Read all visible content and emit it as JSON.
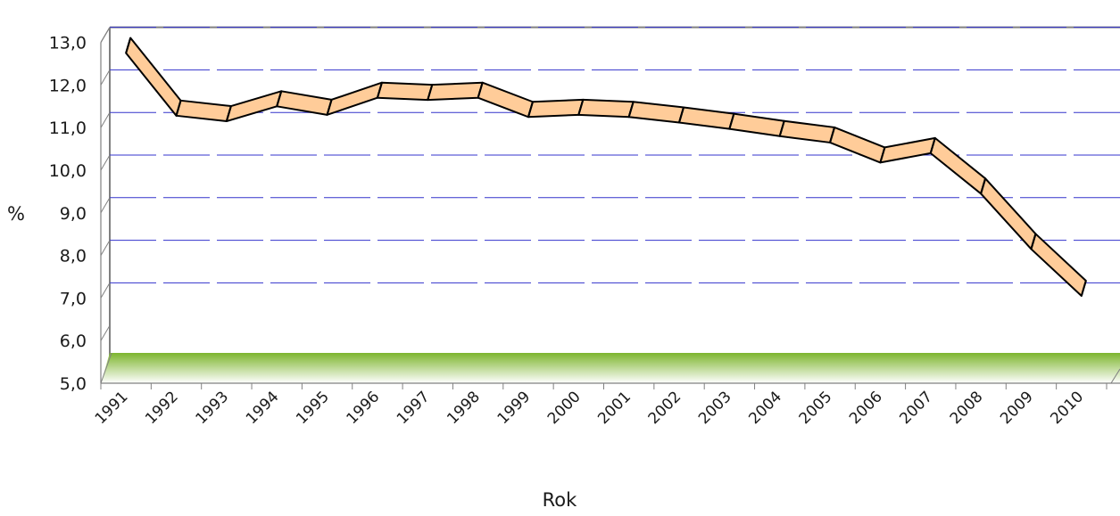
{
  "chart_data": {
    "type": "line",
    "xlabel": "Rok",
    "ylabel": "%",
    "categories": [
      "1991",
      "1992",
      "1993",
      "1994",
      "1995",
      "1996",
      "1997",
      "1998",
      "1999",
      "2000",
      "2001",
      "2002",
      "2003",
      "2004",
      "2005",
      "2006",
      "2007",
      "2008",
      "2009",
      "2010"
    ],
    "series": [
      {
        "values": [
          12.75,
          11.28,
          11.15,
          11.5,
          11.3,
          11.7,
          11.65,
          11.7,
          11.25,
          11.3,
          11.25,
          11.12,
          10.97,
          10.8,
          10.65,
          10.18,
          10.4,
          9.45,
          8.15,
          7.05
        ]
      }
    ],
    "yticks": [
      "5,0",
      "6,0",
      "7,0",
      "8,0",
      "9,0",
      "10,0",
      "11,0",
      "12,0",
      "13,0"
    ],
    "ylim": [
      5,
      13
    ],
    "grid": true,
    "style": "3d-ribbon",
    "colors": {
      "line_fill": "#FFCC99",
      "line_stroke": "#000000",
      "gridline": "#3333CC",
      "floor_top": "#7DB52E",
      "floor_bottom": "#FFFFFF",
      "axis": "#808080"
    }
  }
}
